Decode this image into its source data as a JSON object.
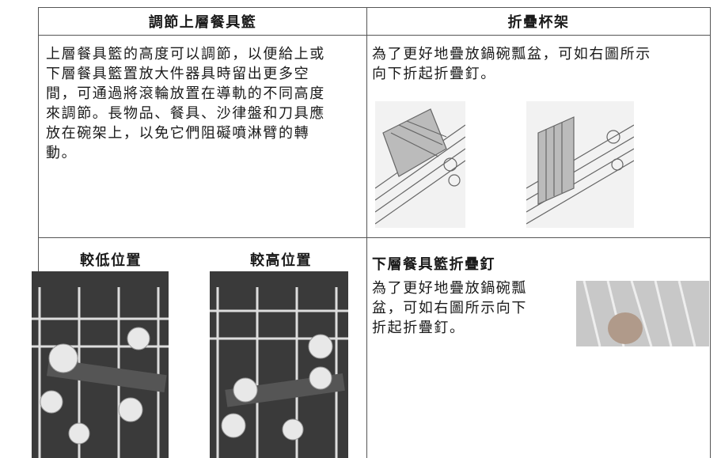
{
  "header": [
    "調節上層餐具籃",
    "折疊杯架"
  ],
  "upper_basket": {
    "lines": [
      "上層餐具籃的高度可以調節，以便給上或",
      "下層餐具籃置放大件器具時留出更多空",
      "間，可通過將滾輪放置在導軌的不同高度",
      "來調節。長物品、餐具、沙律盤和刀具應",
      "放在碗架上，以免它們阻礙噴淋臂的轉",
      "動。"
    ]
  },
  "cup_rack": {
    "lines": [
      "為了更好地疊放鍋碗瓢盆，可如右圖所示",
      "向下折起折疊釘。"
    ]
  },
  "basket_positions": [
    {
      "label": "較低位置"
    },
    {
      "label": "較高位置"
    }
  ],
  "lower_basket": {
    "title": "下層餐具籃折疊釘",
    "lines": [
      "為了更好地疊放鍋碗瓢",
      "盆，可如右圖所示向下",
      "折起折疊釘。"
    ]
  }
}
